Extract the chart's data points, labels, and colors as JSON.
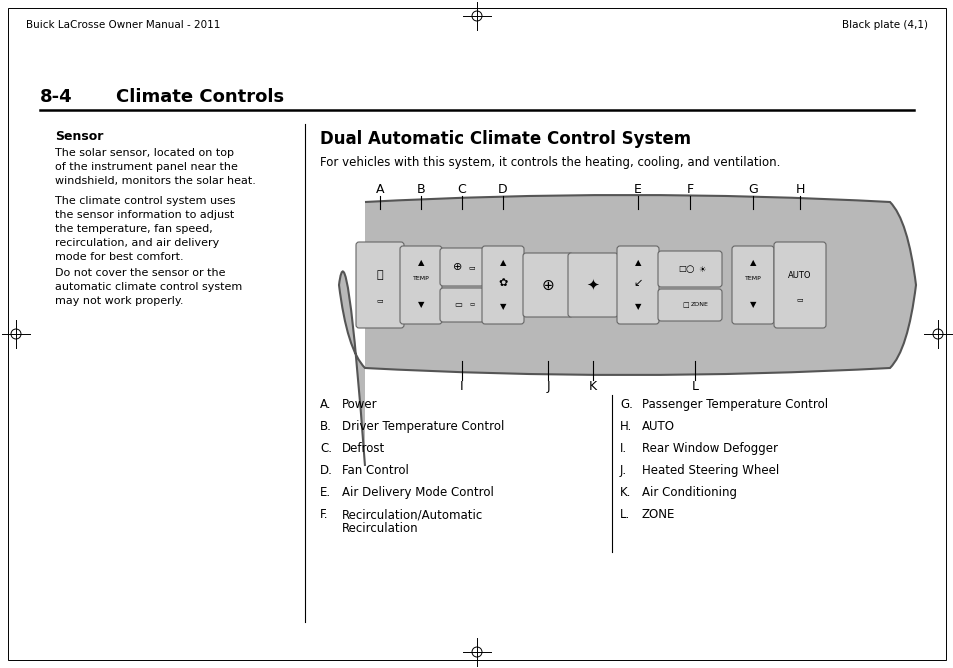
{
  "page_title_left": "Buick LaCrosse Owner Manual - 2011",
  "page_title_right": "Black plate (4,1)",
  "section_number": "8-4",
  "section_title": "Climate Controls",
  "left_heading": "Sensor",
  "left_para1": "The solar sensor, located on top\nof the instrument panel near the\nwindshield, monitors the solar heat.",
  "left_para2": "The climate control system uses\nthe sensor information to adjust\nthe temperature, fan speed,\nrecirculation, and air delivery\nmode for best comfort.",
  "left_para3": "Do not cover the sensor or the\nautomatic climate control system\nmay not work properly.",
  "right_heading": "Dual Automatic Climate Control System",
  "right_subtext": "For vehicles with this system, it controls the heating, cooling, and ventilation.",
  "list_left": [
    [
      "A.",
      "Power"
    ],
    [
      "B.",
      "Driver Temperature Control"
    ],
    [
      "C.",
      "Defrost"
    ],
    [
      "D.",
      "Fan Control"
    ],
    [
      "E.",
      "Air Delivery Mode Control"
    ],
    [
      "F.",
      "Recirculation/Automatic",
      "Recirculation"
    ]
  ],
  "list_right": [
    [
      "G.",
      "Passenger Temperature Control"
    ],
    [
      "H.",
      "AUTO"
    ],
    [
      "I.",
      "Rear Window Defogger"
    ],
    [
      "J.",
      "Heated Steering Wheel"
    ],
    [
      "K.",
      "Air Conditioning"
    ],
    [
      "L.",
      "ZONE"
    ]
  ],
  "bg_color": "#ffffff",
  "panel_color": "#b8b8b8",
  "button_color": "#d0d0d0",
  "button_highlight": "#e0e0e0"
}
